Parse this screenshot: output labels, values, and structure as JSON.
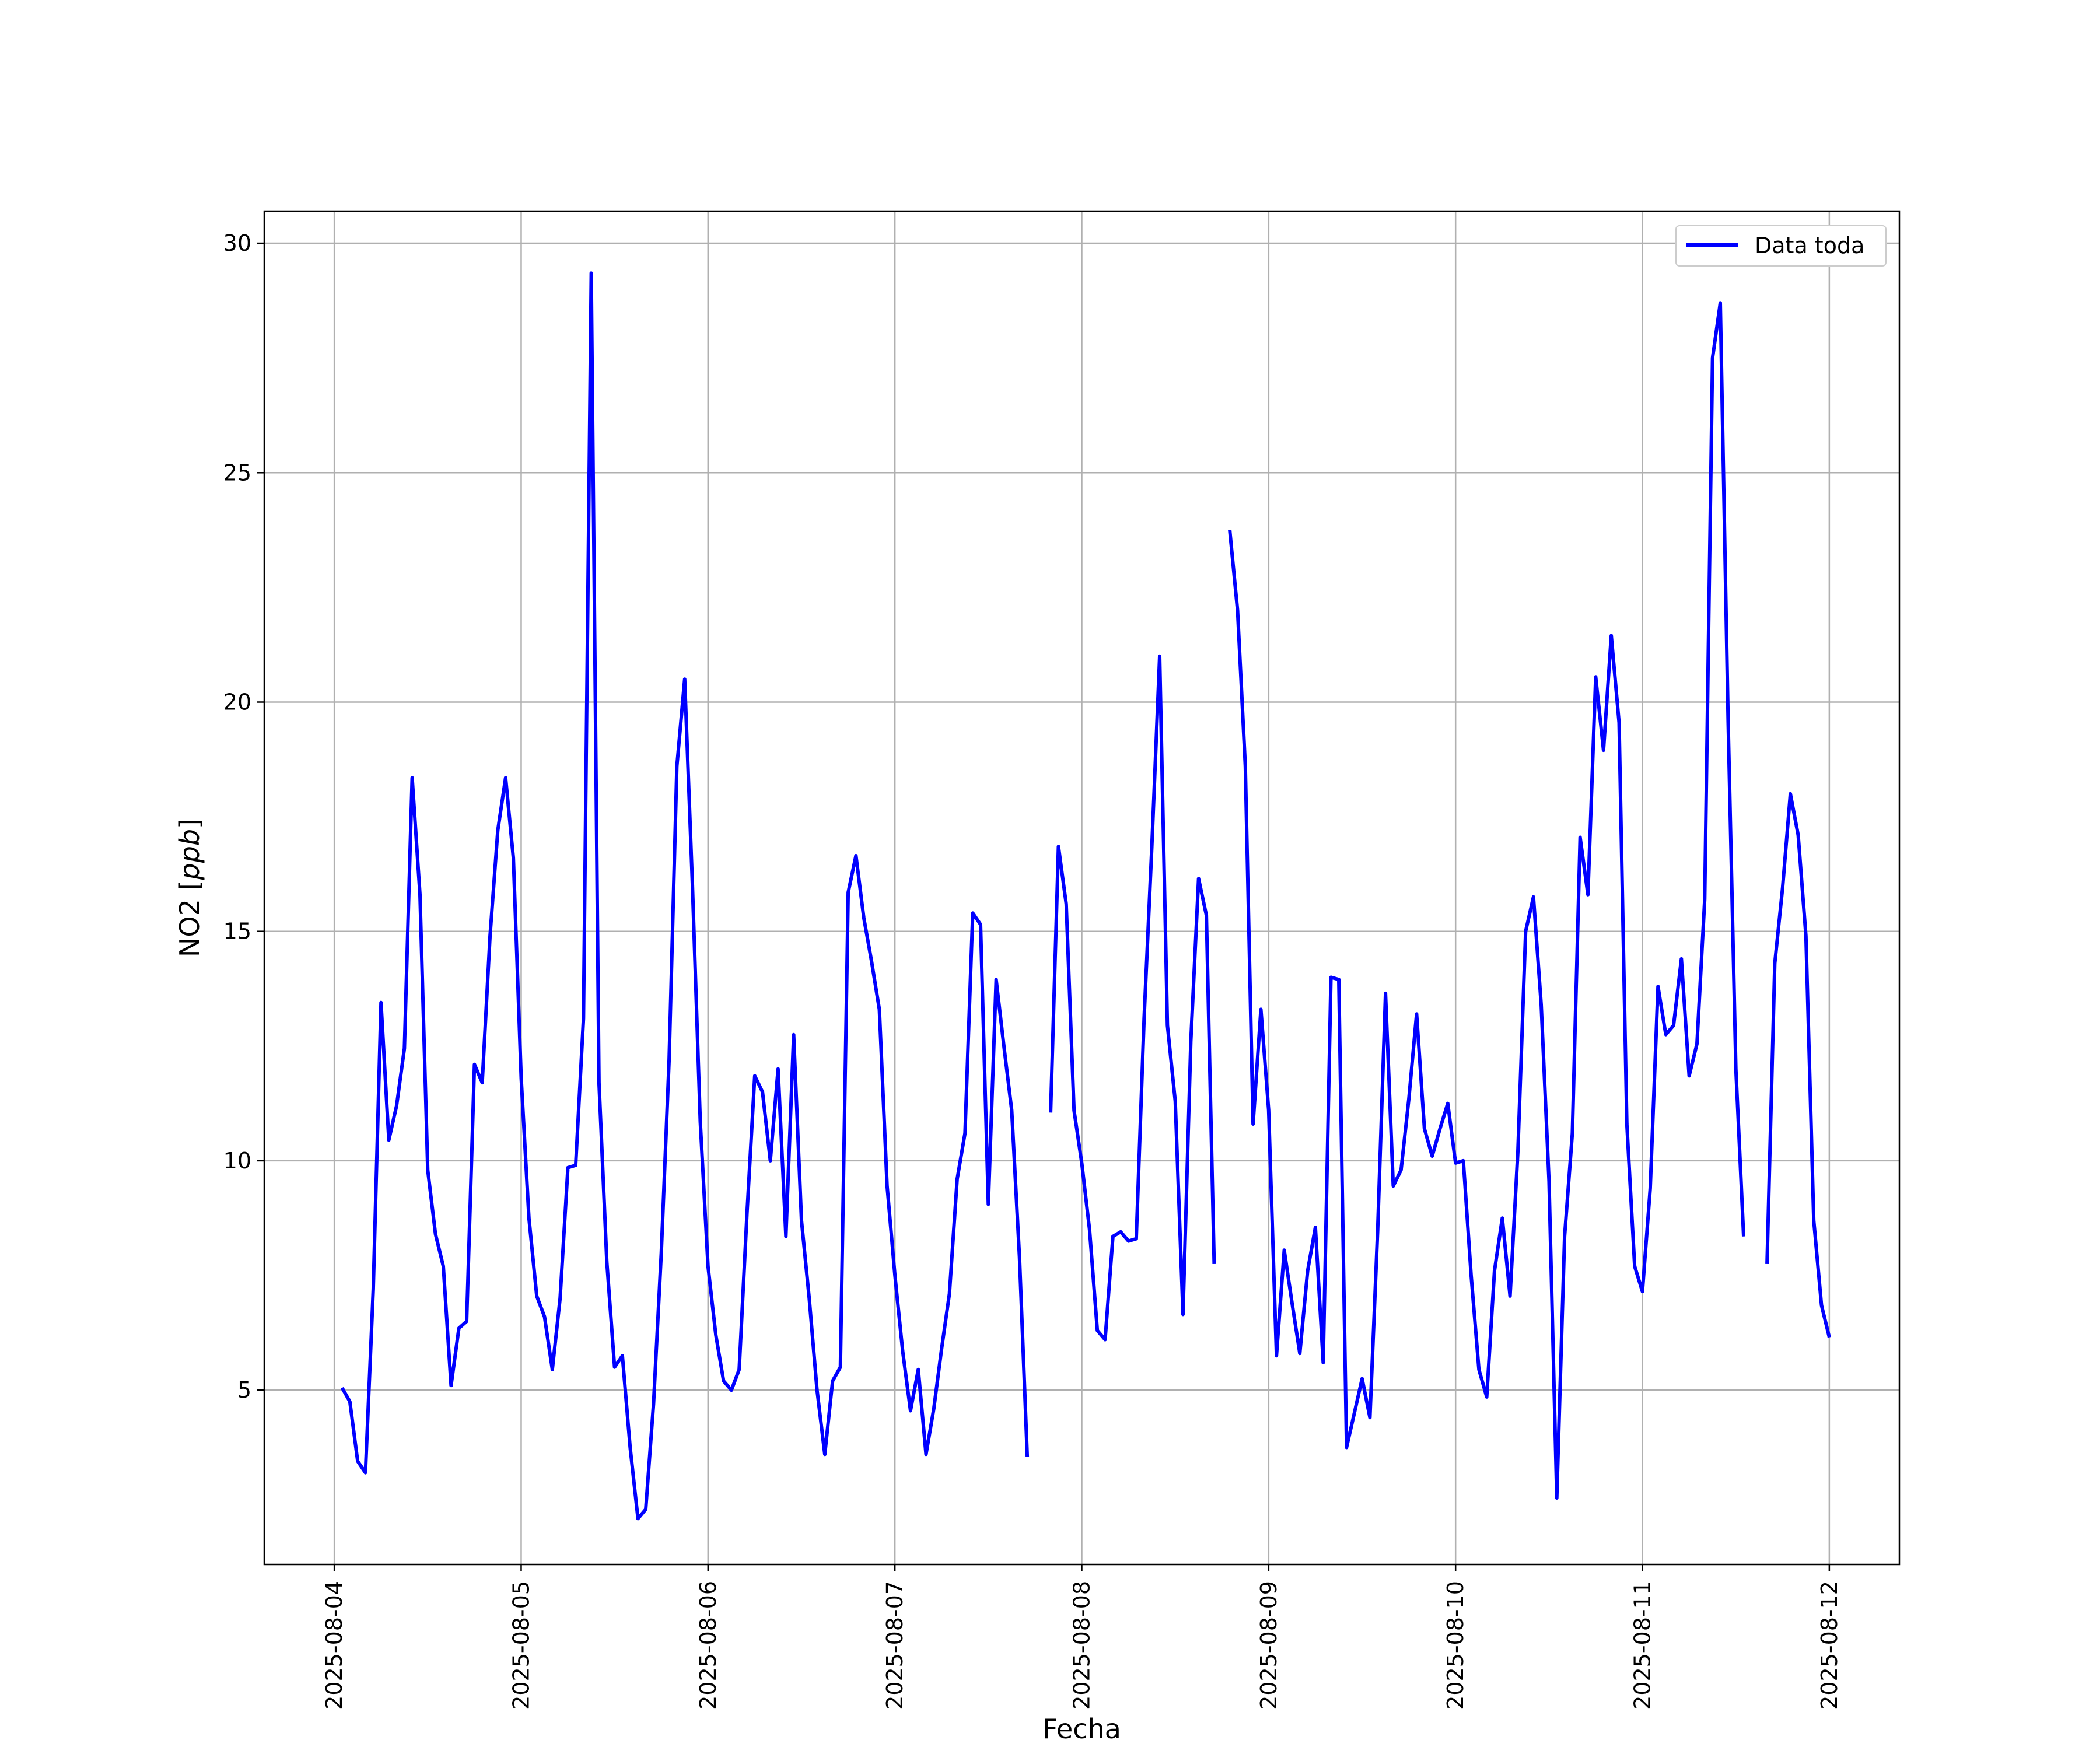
{
  "chart_data": {
    "type": "line",
    "title": "",
    "xlabel": "Fecha",
    "ylabel": "NO2 [ppb]",
    "xlim": [
      "2025-08-03T15:00",
      "2025-08-12T09:00"
    ],
    "ylim": [
      1.2,
      30.7
    ],
    "grid": true,
    "legend_position": "top-right",
    "x_ticks": [
      "2025-08-04",
      "2025-08-05",
      "2025-08-06",
      "2025-08-07",
      "2025-08-08",
      "2025-08-09",
      "2025-08-10",
      "2025-08-11",
      "2025-08-12"
    ],
    "y_ticks": [
      5,
      10,
      15,
      20,
      25,
      30
    ],
    "series": [
      {
        "name": "Data toda",
        "color": "#0000ff",
        "points": [
          [
            "2025-08-04T01:00",
            5.05
          ],
          [
            "2025-08-04T02:00",
            4.75
          ],
          [
            "2025-08-04T03:00",
            3.45
          ],
          [
            "2025-08-04T04:00",
            3.2
          ],
          [
            "2025-08-04T05:00",
            7.2
          ],
          [
            "2025-08-04T06:00",
            13.45
          ],
          [
            "2025-08-04T07:00",
            10.45
          ],
          [
            "2025-08-04T08:00",
            11.2
          ],
          [
            "2025-08-04T09:00",
            12.45
          ],
          [
            "2025-08-04T10:00",
            18.35
          ],
          [
            "2025-08-04T11:00",
            15.8
          ],
          [
            "2025-08-04T12:00",
            9.8
          ],
          [
            "2025-08-04T13:00",
            8.4
          ],
          [
            "2025-08-04T14:00",
            7.7
          ],
          [
            "2025-08-04T15:00",
            5.1
          ],
          [
            "2025-08-04T16:00",
            6.35
          ],
          [
            "2025-08-04T17:00",
            6.5
          ],
          [
            "2025-08-04T18:00",
            12.1
          ],
          [
            "2025-08-04T19:00",
            11.7
          ],
          [
            "2025-08-04T20:00",
            14.9
          ],
          [
            "2025-08-04T21:00",
            17.2
          ],
          [
            "2025-08-04T22:00",
            18.35
          ],
          [
            "2025-08-04T23:00",
            16.6
          ],
          [
            "2025-08-05T00:00",
            11.8
          ],
          [
            "2025-08-05T01:00",
            8.75
          ],
          [
            "2025-08-05T02:00",
            7.05
          ],
          [
            "2025-08-05T03:00",
            6.6
          ],
          [
            "2025-08-05T04:00",
            5.45
          ],
          [
            "2025-08-05T05:00",
            7.0
          ],
          [
            "2025-08-05T06:00",
            9.85
          ],
          [
            "2025-08-05T07:00",
            9.9
          ],
          [
            "2025-08-05T08:00",
            13.1
          ],
          [
            "2025-08-05T09:00",
            29.35
          ],
          [
            "2025-08-05T10:00",
            11.7
          ],
          [
            "2025-08-05T11:00",
            7.8
          ],
          [
            "2025-08-05T12:00",
            5.5
          ],
          [
            "2025-08-05T13:00",
            5.75
          ],
          [
            "2025-08-05T14:00",
            3.75
          ],
          [
            "2025-08-05T15:00",
            2.2
          ],
          [
            "2025-08-05T16:00",
            2.4
          ],
          [
            "2025-08-05T17:00",
            4.7
          ],
          [
            "2025-08-05T18:00",
            8.0
          ],
          [
            "2025-08-05T19:00",
            12.2
          ],
          [
            "2025-08-05T20:00",
            18.6
          ],
          [
            "2025-08-05T21:00",
            20.5
          ],
          [
            "2025-08-05T22:00",
            16.0
          ],
          [
            "2025-08-05T23:00",
            10.85
          ],
          [
            "2025-08-06T00:00",
            7.7
          ],
          [
            "2025-08-06T01:00",
            6.2
          ],
          [
            "2025-08-06T02:00",
            5.2
          ],
          [
            "2025-08-06T03:00",
            5.0
          ],
          [
            "2025-08-06T04:00",
            5.45
          ],
          [
            "2025-08-06T05:00",
            8.85
          ],
          [
            "2025-08-06T06:00",
            11.85
          ],
          [
            "2025-08-06T07:00",
            11.5
          ],
          [
            "2025-08-06T08:00",
            10.0
          ],
          [
            "2025-08-06T09:00",
            12.0
          ],
          [
            "2025-08-06T10:00",
            8.35
          ],
          [
            "2025-08-06T11:00",
            12.75
          ],
          [
            "2025-08-06T12:00",
            8.7
          ],
          [
            "2025-08-06T13:00",
            7.0
          ],
          [
            "2025-08-06T14:00",
            5.0
          ],
          [
            "2025-08-06T15:00",
            3.6
          ],
          [
            "2025-08-06T16:00",
            5.2
          ],
          [
            "2025-08-06T17:00",
            5.5
          ],
          [
            "2025-08-06T18:00",
            15.85
          ],
          [
            "2025-08-06T19:00",
            16.65
          ],
          [
            "2025-08-06T20:00",
            15.3
          ],
          [
            "2025-08-06T21:00",
            14.35
          ],
          [
            "2025-08-06T22:00",
            13.3
          ],
          [
            "2025-08-06T23:00",
            9.45
          ],
          [
            "2025-08-07T00:00",
            7.5
          ],
          [
            "2025-08-07T01:00",
            5.85
          ],
          [
            "2025-08-07T02:00",
            4.55
          ],
          [
            "2025-08-07T03:00",
            5.45
          ],
          [
            "2025-08-07T04:00",
            3.6
          ],
          [
            "2025-08-07T05:00",
            4.6
          ],
          [
            "2025-08-07T06:00",
            5.9
          ],
          [
            "2025-08-07T07:00",
            7.1
          ],
          [
            "2025-08-07T08:00",
            9.6
          ],
          [
            "2025-08-07T09:00",
            10.6
          ],
          [
            "2025-08-07T10:00",
            15.4
          ],
          [
            "2025-08-07T11:00",
            15.15
          ],
          [
            "2025-08-07T12:00",
            9.05
          ],
          [
            "2025-08-07T13:00",
            13.95
          ],
          [
            "2025-08-07T14:00",
            12.5
          ],
          [
            "2025-08-07T15:00",
            11.1
          ],
          [
            "2025-08-07T16:00",
            7.9
          ],
          [
            "2025-08-07T17:00",
            3.55
          ],
          [
            "2025-08-07T20:00",
            11.05
          ],
          [
            "2025-08-07T21:00",
            16.85
          ],
          [
            "2025-08-07T22:00",
            15.6
          ],
          [
            "2025-08-07T23:00",
            11.1
          ],
          [
            "2025-08-08T00:00",
            9.95
          ],
          [
            "2025-08-08T01:00",
            8.5
          ],
          [
            "2025-08-08T02:00",
            6.3
          ],
          [
            "2025-08-08T03:00",
            6.1
          ],
          [
            "2025-08-08T04:00",
            8.35
          ],
          [
            "2025-08-08T05:00",
            8.45
          ],
          [
            "2025-08-08T06:00",
            8.25
          ],
          [
            "2025-08-08T07:00",
            8.3
          ],
          [
            "2025-08-08T08:00",
            13.1
          ],
          [
            "2025-08-08T09:00",
            16.85
          ],
          [
            "2025-08-08T10:00",
            21.0
          ],
          [
            "2025-08-08T11:00",
            12.95
          ],
          [
            "2025-08-08T12:00",
            11.3
          ],
          [
            "2025-08-08T13:00",
            6.65
          ],
          [
            "2025-08-08T14:00",
            12.6
          ],
          [
            "2025-08-08T15:00",
            16.15
          ],
          [
            "2025-08-08T16:00",
            15.35
          ],
          [
            "2025-08-08T17:00",
            7.75
          ],
          [
            "2025-08-08T19:00",
            23.75
          ],
          [
            "2025-08-08T20:00",
            22.0
          ],
          [
            "2025-08-08T21:00",
            18.6
          ],
          [
            "2025-08-08T22:00",
            10.8
          ],
          [
            "2025-08-08T23:00",
            13.3
          ],
          [
            "2025-08-09T00:00",
            11.1
          ],
          [
            "2025-08-09T01:00",
            5.75
          ],
          [
            "2025-08-09T02:00",
            8.05
          ],
          [
            "2025-08-09T03:00",
            6.9
          ],
          [
            "2025-08-09T04:00",
            5.8
          ],
          [
            "2025-08-09T05:00",
            7.6
          ],
          [
            "2025-08-09T06:00",
            8.55
          ],
          [
            "2025-08-09T07:00",
            5.6
          ],
          [
            "2025-08-09T08:00",
            14.0
          ],
          [
            "2025-08-09T09:00",
            13.95
          ],
          [
            "2025-08-09T10:00",
            3.75
          ],
          [
            "2025-08-09T11:00",
            4.5
          ],
          [
            "2025-08-09T12:00",
            5.25
          ],
          [
            "2025-08-09T13:00",
            4.4
          ],
          [
            "2025-08-09T14:00",
            8.5
          ],
          [
            "2025-08-09T15:00",
            13.65
          ],
          [
            "2025-08-09T16:00",
            9.45
          ],
          [
            "2025-08-09T17:00",
            9.8
          ],
          [
            "2025-08-09T18:00",
            11.35
          ],
          [
            "2025-08-09T19:00",
            13.2
          ],
          [
            "2025-08-09T20:00",
            10.7
          ],
          [
            "2025-08-09T21:00",
            10.1
          ],
          [
            "2025-08-09T22:00",
            10.7
          ],
          [
            "2025-08-09T23:00",
            11.25
          ],
          [
            "2025-08-10T00:00",
            9.95
          ],
          [
            "2025-08-10T01:00",
            10.0
          ],
          [
            "2025-08-10T02:00",
            7.5
          ],
          [
            "2025-08-10T03:00",
            5.45
          ],
          [
            "2025-08-10T04:00",
            4.85
          ],
          [
            "2025-08-10T05:00",
            7.6
          ],
          [
            "2025-08-10T06:00",
            8.75
          ],
          [
            "2025-08-10T07:00",
            7.05
          ],
          [
            "2025-08-10T08:00",
            10.2
          ],
          [
            "2025-08-10T09:00",
            15.0
          ],
          [
            "2025-08-10T10:00",
            15.75
          ],
          [
            "2025-08-10T11:00",
            13.4
          ],
          [
            "2025-08-10T12:00",
            9.55
          ],
          [
            "2025-08-10T13:00",
            2.65
          ],
          [
            "2025-08-10T14:00",
            8.35
          ],
          [
            "2025-08-10T15:00",
            10.6
          ],
          [
            "2025-08-10T16:00",
            17.05
          ],
          [
            "2025-08-10T17:00",
            15.8
          ],
          [
            "2025-08-10T18:00",
            20.55
          ],
          [
            "2025-08-10T19:00",
            18.95
          ],
          [
            "2025-08-10T20:00",
            21.45
          ],
          [
            "2025-08-10T21:00",
            19.55
          ],
          [
            "2025-08-10T22:00",
            10.8
          ],
          [
            "2025-08-10T23:00",
            7.7
          ],
          [
            "2025-08-11T00:00",
            7.15
          ],
          [
            "2025-08-11T01:00",
            9.4
          ],
          [
            "2025-08-11T02:00",
            13.8
          ],
          [
            "2025-08-11T03:00",
            12.75
          ],
          [
            "2025-08-11T04:00",
            12.95
          ],
          [
            "2025-08-11T05:00",
            14.4
          ],
          [
            "2025-08-11T06:00",
            11.85
          ],
          [
            "2025-08-11T07:00",
            12.55
          ],
          [
            "2025-08-11T08:00",
            15.7
          ],
          [
            "2025-08-11T09:00",
            27.5
          ],
          [
            "2025-08-11T10:00",
            28.7
          ],
          [
            "2025-08-11T11:00",
            19.6
          ],
          [
            "2025-08-11T12:00",
            12.0
          ],
          [
            "2025-08-11T13:00",
            8.35
          ],
          [
            "2025-08-11T16:00",
            7.75
          ],
          [
            "2025-08-11T17:00",
            14.3
          ],
          [
            "2025-08-11T18:00",
            15.95
          ],
          [
            "2025-08-11T19:00",
            18.0
          ],
          [
            "2025-08-11T20:00",
            17.1
          ],
          [
            "2025-08-11T21:00",
            14.9
          ],
          [
            "2025-08-11T22:00",
            8.7
          ],
          [
            "2025-08-11T23:00",
            6.85
          ],
          [
            "2025-08-12T00:00",
            6.15
          ]
        ]
      }
    ]
  }
}
